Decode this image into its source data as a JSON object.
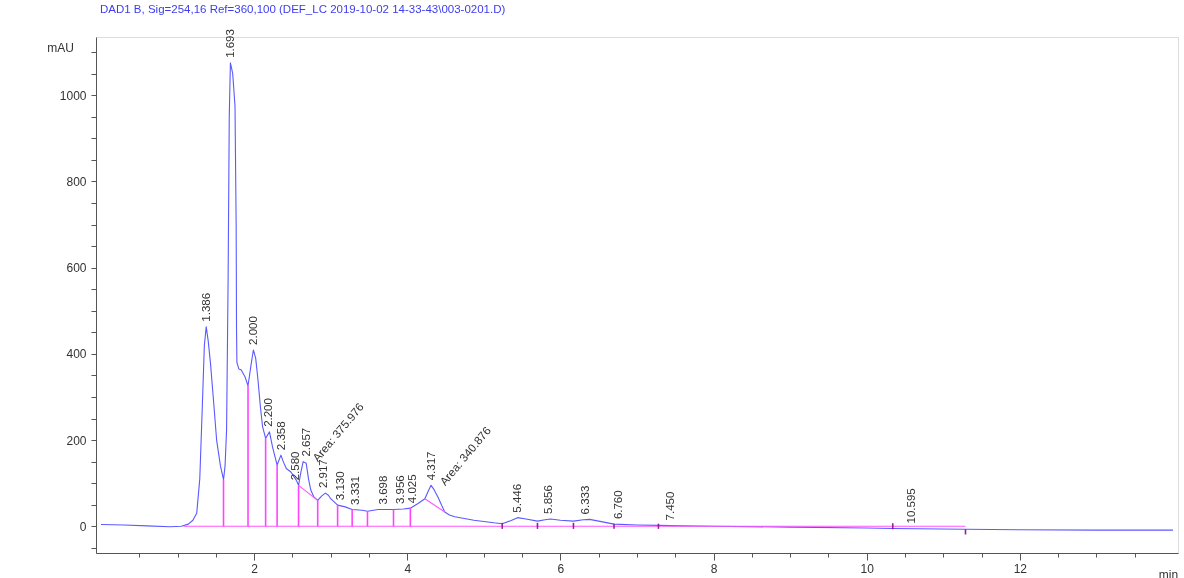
{
  "chart_data": {
    "type": "line",
    "title": "DAD1 B, Sig=254,16 Ref=360,100 (DEF_LC 2019-10-02 14-33-43\\003-0201.D)",
    "xlabel": "min",
    "ylabel": "mAU",
    "xlim": [
      0,
      14
    ],
    "ylim": [
      -62,
      1135
    ],
    "xticks": [
      {
        "value": 0.5,
        "label": null
      },
      {
        "value": 1,
        "label": null
      },
      {
        "value": 1.5,
        "label": null
      },
      2,
      {
        "value": 2.5,
        "label": null
      },
      {
        "value": 3,
        "label": null
      },
      {
        "value": 3.5,
        "label": null
      },
      4,
      {
        "value": 4.5,
        "label": null
      },
      {
        "value": 5,
        "label": null
      },
      {
        "value": 5.5,
        "label": null
      },
      6,
      {
        "value": 6.5,
        "label": null
      },
      {
        "value": 7,
        "label": null
      },
      {
        "value": 7.5,
        "label": null
      },
      8,
      {
        "value": 8.5,
        "label": null
      },
      {
        "value": 9,
        "label": null
      },
      {
        "value": 9.5,
        "label": null
      },
      10,
      {
        "value": 10.5,
        "label": null
      },
      {
        "value": 11,
        "label": null
      },
      {
        "value": 11.5,
        "label": null
      },
      12,
      {
        "value": 12.5,
        "label": null
      },
      {
        "value": 13,
        "label": null
      },
      {
        "value": 13.5,
        "label": null
      }
    ],
    "yticks": [
      {
        "value": -50,
        "label": null
      },
      0,
      {
        "value": 50,
        "label": null
      },
      {
        "value": 100,
        "label": null
      },
      {
        "value": 150,
        "label": null
      },
      200,
      {
        "value": 250,
        "label": null
      },
      {
        "value": 300,
        "label": null
      },
      {
        "value": 350,
        "label": null
      },
      400,
      {
        "value": 450,
        "label": null
      },
      {
        "value": 500,
        "label": null
      },
      {
        "value": 550,
        "label": null
      },
      600,
      {
        "value": 650,
        "label": null
      },
      {
        "value": 700,
        "label": null
      },
      {
        "value": 750,
        "label": null
      },
      800,
      {
        "value": 850,
        "label": null
      },
      {
        "value": 900,
        "label": null
      },
      {
        "value": 950,
        "label": null
      },
      1000,
      {
        "value": 1050,
        "label": null
      },
      {
        "value": 1100,
        "label": null
      }
    ],
    "grid": false,
    "series": [
      {
        "color": "#5a5aff",
        "x": [
          0,
          0.3,
          0.6,
          0.9,
          1.05,
          1.14,
          1.2,
          1.25,
          1.29,
          1.32,
          1.35,
          1.374,
          1.4,
          1.43,
          1.47,
          1.51,
          1.56,
          1.6,
          1.62,
          1.64,
          1.66,
          1.675,
          1.69,
          1.72,
          1.75,
          1.765,
          1.77,
          1.775,
          1.8,
          1.83,
          1.88,
          1.92,
          1.96,
          1.99,
          2.02,
          2.05,
          2.08,
          2.11,
          2.15,
          2.2,
          2.24,
          2.3,
          2.35,
          2.38,
          2.42,
          2.48,
          2.55,
          2.58,
          2.61,
          2.64,
          2.68,
          2.71,
          2.74,
          2.78,
          2.83,
          2.88,
          2.93,
          2.97,
          3.0,
          3.09,
          3.19,
          3.28,
          3.41,
          3.48,
          3.62,
          3.82,
          3.95,
          4.04,
          4.14,
          4.23,
          4.27,
          4.31,
          4.35,
          4.4,
          4.45,
          4.49,
          4.55,
          4.62,
          4.87,
          5.13,
          5.24,
          5.35,
          5.44,
          5.55,
          5.7,
          5.8,
          5.87,
          6.0,
          6.17,
          6.3,
          6.38,
          6.5,
          6.7,
          7.0,
          7.28,
          7.6,
          8.0,
          9.0,
          10.0,
          10.34,
          11.29,
          12.0,
          13.0,
          14.0
        ],
        "values": [
          4,
          3,
          1,
          -1,
          0,
          5,
          14,
          30,
          110,
          262,
          420,
          463,
          430,
          378,
          290,
          200,
          140,
          108,
          140,
          223,
          572,
          950,
          1075,
          1050,
          975,
          700,
          456,
          380,
          365,
          363,
          347,
          326,
          375,
          409,
          390,
          340,
          280,
          231,
          204,
          219,
          184,
          142,
          165,
          150,
          134,
          126,
          107,
          95,
          125,
          150,
          146,
          110,
          84,
          68,
          60,
          70,
          77,
          72,
          64,
          49,
          45,
          39,
          37,
          35,
          39,
          39,
          40,
          42,
          53,
          64,
          80,
          95,
          85,
          68,
          48,
          33,
          26,
          22,
          14,
          8,
          6,
          13,
          20,
          17,
          12,
          15,
          17,
          14,
          12,
          15,
          16,
          12,
          5,
          3,
          2,
          1,
          0,
          -2,
          -4,
          -5,
          -7,
          -8,
          -9,
          -9
        ]
      },
      {
        "color": "#ff55ff",
        "x": [
          1.08,
          11.29
        ],
        "values": [
          0,
          0
        ]
      },
      {
        "color": "#ff55ff",
        "x": [
          2.58,
          2.83
        ],
        "values": [
          95,
          60
        ]
      },
      {
        "color": "#ff55ff",
        "x": [
          4.23,
          4.49
        ],
        "values": [
          64,
          33
        ]
      },
      {
        "type": "bar",
        "color": "#ff44ff",
        "x": [
          1.6,
          1.92,
          2.15,
          2.3,
          2.58,
          2.83,
          3.09,
          3.28,
          3.48,
          3.82,
          4.04
        ],
        "values": [
          108,
          326,
          204,
          142,
          95,
          60,
          49,
          39,
          35,
          39,
          42
        ]
      },
      {
        "type": "bar",
        "color": "#9a1a9a",
        "x": [
          5.24,
          5.7,
          6.17,
          6.7,
          7.28,
          10.34,
          11.29
        ],
        "base": [
          -6,
          -6,
          -6,
          -6,
          -6,
          -7,
          -19
        ],
        "values": [
          14,
          14,
          14,
          12,
          12,
          14,
          12
        ]
      }
    ],
    "annotations": [
      {
        "text": "1.386",
        "x": 1.386,
        "y": 463
      },
      {
        "text": "1.693",
        "x": 1.693,
        "y": 1075
      },
      {
        "text": "2.000",
        "x": 2.0,
        "y": 409
      },
      {
        "text": "2.200",
        "x": 2.2,
        "y": 219
      },
      {
        "text": "2.358",
        "x": 2.358,
        "y": 165
      },
      {
        "text": "2.580",
        "x": 2.58,
        "y": 95
      },
      {
        "text": "2.657",
        "x": 2.657,
        "y": 150
      },
      {
        "text": "Area: 375.976",
        "x": 2.657,
        "y": 150
      },
      {
        "text": "2.917",
        "x": 2.917,
        "y": 77
      },
      {
        "text": "3.130",
        "x": 3.13,
        "y": 49
      },
      {
        "text": "3.331",
        "x": 3.331,
        "y": 38
      },
      {
        "text": "3.698",
        "x": 3.698,
        "y": 39
      },
      {
        "text": "3.956",
        "x": 3.956,
        "y": 40
      },
      {
        "text": "4.025",
        "x": 4.025,
        "y": 42
      },
      {
        "text": "4.317",
        "x": 4.317,
        "y": 95
      },
      {
        "text": "Area: 340.876",
        "x": 4.317,
        "y": 95
      },
      {
        "text": "5.446",
        "x": 5.446,
        "y": 20
      },
      {
        "text": "5.856",
        "x": 5.856,
        "y": 17
      },
      {
        "text": "6.333",
        "x": 6.333,
        "y": 16
      },
      {
        "text": "6.760",
        "x": 6.76,
        "y": 5
      },
      {
        "text": "7.450",
        "x": 7.45,
        "y": 2
      },
      {
        "text": "10.595",
        "x": 10.595,
        "y": -5
      }
    ]
  }
}
